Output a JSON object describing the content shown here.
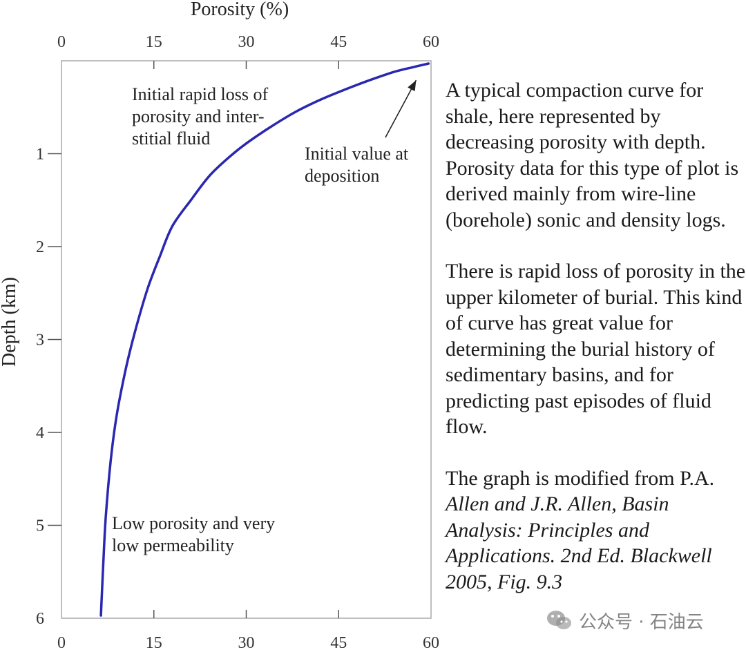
{
  "chart_data": {
    "type": "line",
    "x_axis": {
      "label": "Porosity (%)",
      "position": "top and bottom",
      "range": [
        0,
        60
      ],
      "ticks": [
        0,
        15,
        30,
        45,
        60
      ]
    },
    "y_axis": {
      "label": "Depth (km)",
      "range": [
        0,
        6
      ],
      "inverted": true,
      "ticks": [
        1,
        2,
        3,
        4,
        5,
        6
      ]
    },
    "grid": false,
    "series": [
      {
        "color": "#2a27b0",
        "points": [
          [
            59.6,
            0.03
          ],
          [
            57,
            0.07
          ],
          [
            54,
            0.12
          ],
          [
            50,
            0.21
          ],
          [
            46,
            0.31
          ],
          [
            42,
            0.42
          ],
          [
            38,
            0.55
          ],
          [
            34,
            0.71
          ],
          [
            30,
            0.89
          ],
          [
            27,
            1.05
          ],
          [
            24,
            1.24
          ],
          [
            21,
            1.5
          ],
          [
            18,
            1.78
          ],
          [
            16,
            2.1
          ],
          [
            14,
            2.45
          ],
          [
            12,
            2.9
          ],
          [
            10.5,
            3.3
          ],
          [
            9,
            3.8
          ],
          [
            8,
            4.3
          ],
          [
            7.2,
            4.9
          ],
          [
            6.8,
            5.4
          ],
          [
            6.4,
            5.97
          ]
        ]
      }
    ],
    "annotations": [
      {
        "lines": [
          "Initial rapid loss of",
          "porosity and inter-",
          "stitial fluid"
        ]
      },
      {
        "lines": [
          "Initial value at",
          "deposition"
        ],
        "arrow_to": [
          59.6,
          0.15
        ]
      },
      {
        "lines": [
          "Low porosity and very",
          "low permeability"
        ]
      }
    ]
  },
  "caption": {
    "paragraph_1": "A typical compaction curve for shale, here represented by decreasing porosity with depth. Porosity data for this type of plot is derived mainly from wire-line (borehole) sonic and density logs.",
    "paragraph_2": "There is rapid loss of porosity in the upper kilometer of burial. This kind of curve has great value for determining the burial history of sedimentary basins, and for predicting past episodes of fluid flow.",
    "citation_intro": "The graph is modified from P.A.",
    "citation_ref": "Allen and J.R. Allen, Basin Analysis: Principles and Applications. 2nd Ed. Blackwell 2005, Fig. 9.3"
  },
  "watermark": {
    "icon": "wechat-icon",
    "text": "公众号 · 石油云"
  }
}
